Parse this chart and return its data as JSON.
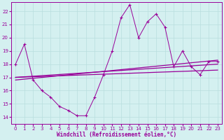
{
  "xlabel": "Windchill (Refroidissement éolien,°C)",
  "bg_color": "#d4f0f0",
  "grid_color": "#b8dede",
  "line_color": "#990099",
  "xlim": [
    -0.5,
    23.5
  ],
  "ylim": [
    13.5,
    22.7
  ],
  "xticks": [
    0,
    1,
    2,
    3,
    4,
    5,
    6,
    7,
    8,
    9,
    10,
    11,
    12,
    13,
    14,
    15,
    16,
    17,
    18,
    19,
    20,
    21,
    22,
    23
  ],
  "yticks": [
    14,
    15,
    16,
    17,
    18,
    19,
    20,
    21,
    22
  ],
  "series1_x": [
    0,
    1,
    2,
    3,
    4,
    5,
    6,
    7,
    8,
    9,
    10,
    11,
    12,
    13,
    14,
    15,
    16,
    17,
    18,
    19,
    20,
    21,
    22,
    23
  ],
  "series1_y": [
    18.0,
    19.5,
    16.8,
    16.0,
    15.5,
    14.8,
    14.5,
    14.1,
    14.1,
    15.5,
    17.2,
    19.0,
    21.5,
    22.5,
    20.0,
    21.2,
    21.8,
    20.8,
    17.8,
    19.0,
    17.8,
    17.2,
    18.2,
    18.2
  ],
  "series2_x": [
    0,
    23
  ],
  "series2_y": [
    16.8,
    18.3
  ],
  "series3_x": [
    0,
    23
  ],
  "series3_y": [
    17.0,
    17.55
  ],
  "series4_x": [
    0,
    23
  ],
  "series4_y": [
    17.0,
    18.0
  ],
  "xlabel_fontsize": 5.5,
  "tick_fontsize": 5
}
